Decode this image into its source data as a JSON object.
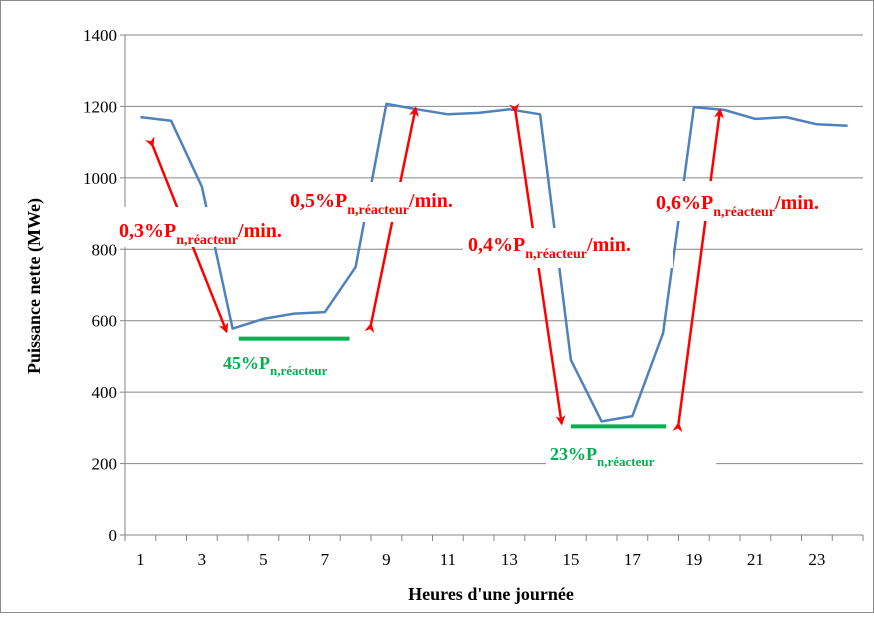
{
  "chart_data": {
    "type": "line",
    "title": "",
    "xlabel": "Heures d'une journée",
    "ylabel": "Puissance nette (MWe)",
    "ylim": [
      0,
      1400
    ],
    "yticks": [
      0,
      200,
      400,
      600,
      800,
      1000,
      1200,
      1400
    ],
    "xlim": [
      0.5,
      24.5
    ],
    "xticks": [
      1,
      3,
      5,
      7,
      9,
      11,
      13,
      15,
      17,
      19,
      21,
      23
    ],
    "grid": "horizontal",
    "series": [
      {
        "color": "#4f81bd",
        "x": [
          1,
          2,
          3,
          4,
          5,
          6,
          7,
          8,
          9,
          10,
          11,
          12,
          13,
          14,
          15,
          16,
          17,
          18,
          19,
          20,
          21,
          22,
          23,
          24
        ],
        "y": [
          1170,
          1160,
          975,
          578,
          605,
          620,
          624,
          750,
          1207,
          1192,
          1178,
          1182,
          1192,
          1178,
          490,
          318,
          333,
          565,
          1198,
          1190,
          1165,
          1170,
          1150,
          1146
        ]
      }
    ],
    "annotations": [
      {
        "id": "ramp1",
        "main": "0,3%P",
        "sub": "n,réacteur",
        "suffix": "/min.",
        "color": "#ff0000"
      },
      {
        "id": "ramp2",
        "main": "0,5%P",
        "sub": "n,réacteur",
        "suffix": "/min.",
        "color": "#ff0000"
      },
      {
        "id": "ramp3",
        "main": "0,4%P",
        "sub": "n,réacteur",
        "suffix": "/min.",
        "color": "#ff0000"
      },
      {
        "id": "ramp4",
        "main": "0,6%P",
        "sub": "n,réacteur",
        "suffix": "/min.",
        "color": "#ff0000"
      },
      {
        "id": "level1",
        "main": "45%P",
        "sub": "n,réacteur",
        "suffix": "",
        "color": "#00b050"
      },
      {
        "id": "level2",
        "main": "23%P",
        "sub": "n,réacteur",
        "suffix": "",
        "color": "#00b050"
      }
    ],
    "arrows": [
      {
        "from": [
          1.4,
          1090
        ],
        "to": [
          3.8,
          570
        ],
        "color": "#ff0000"
      },
      {
        "from": [
          8.5,
          590
        ],
        "to": [
          9.95,
          1195
        ],
        "color": "#ff0000"
      },
      {
        "from": [
          13.2,
          1185
        ],
        "to": [
          14.7,
          312
        ],
        "color": "#ff0000"
      },
      {
        "from": [
          18.5,
          312
        ],
        "to": [
          19.85,
          1190
        ],
        "color": "#ff0000"
      }
    ],
    "levels": [
      {
        "x": [
          4.2,
          7.8
        ],
        "y": 550,
        "color": "#00b050"
      },
      {
        "x": [
          15.0,
          18.1
        ],
        "y": 304,
        "color": "#00b050"
      }
    ]
  }
}
